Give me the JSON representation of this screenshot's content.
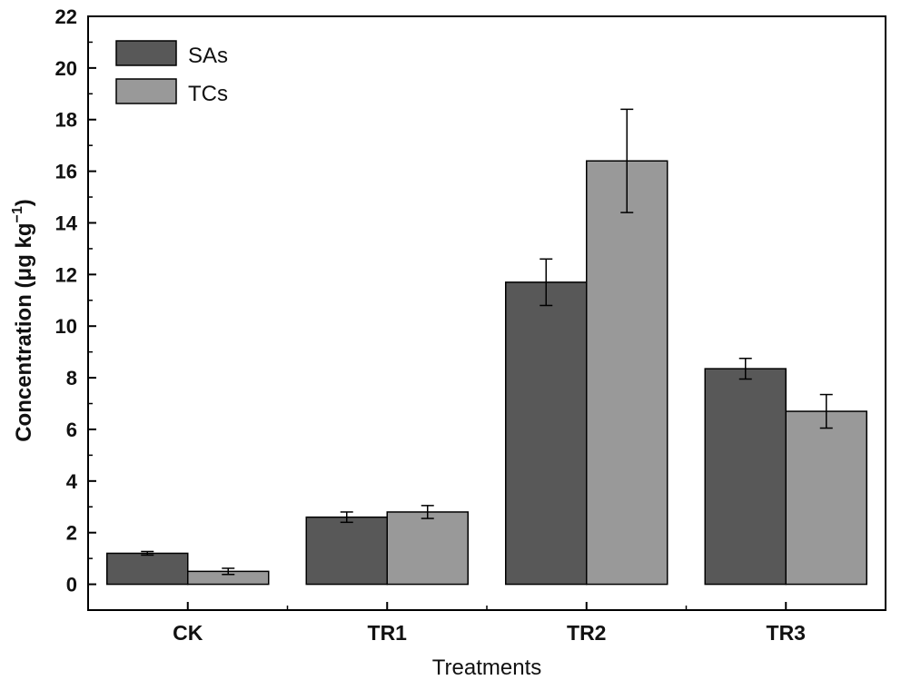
{
  "chart_data": {
    "type": "bar",
    "categories": [
      "CK",
      "TR1",
      "TR2",
      "TR3"
    ],
    "series": [
      {
        "name": "SAs",
        "color": "#585858",
        "values": [
          1.2,
          2.6,
          11.7,
          8.35
        ],
        "errors": [
          0.07,
          0.2,
          0.9,
          0.4
        ]
      },
      {
        "name": "TCs",
        "color": "#999999",
        "values": [
          0.5,
          2.8,
          16.4,
          6.7
        ],
        "errors": [
          0.12,
          0.25,
          2.0,
          0.65
        ]
      }
    ],
    "title": "",
    "xlabel": "Treatments",
    "ylabel": "Concentration (μg kg",
    "ylabel_sup": "−1",
    "ylabel_end": ")",
    "ylim": [
      -1,
      22
    ],
    "yticks": [
      "0",
      "2",
      "4",
      "6",
      "8",
      "10",
      "12",
      "14",
      "16",
      "18",
      "20",
      "22"
    ],
    "grid": false,
    "legend_position": "top-left"
  }
}
